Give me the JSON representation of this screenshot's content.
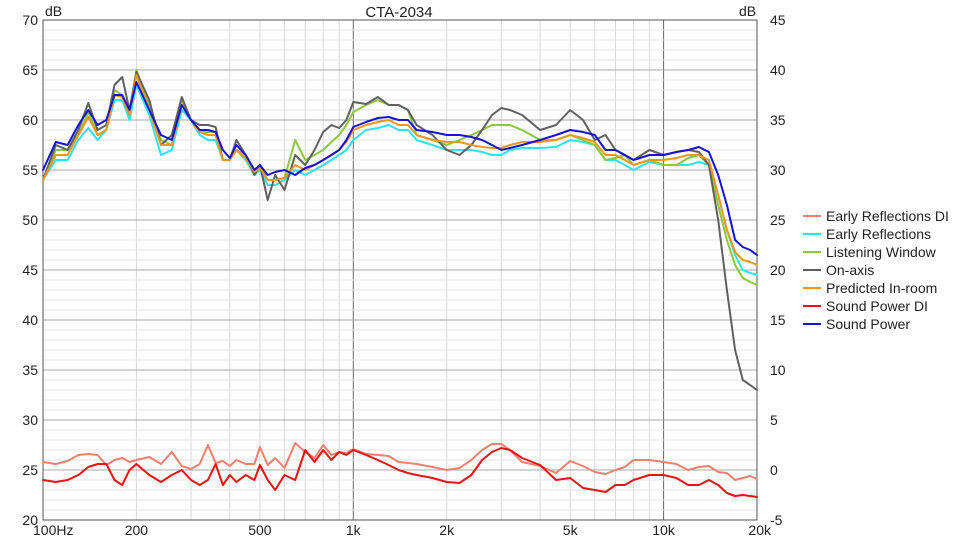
{
  "chart_data": {
    "type": "line",
    "title": "CTA-2034",
    "left_unit": "dB",
    "right_unit": "dB",
    "x_scale": "log",
    "xlim": [
      100,
      20000
    ],
    "ylim_left": [
      20,
      70
    ],
    "ylim_right": [
      -5,
      45
    ],
    "grid": true,
    "legend_position": "right",
    "x_ticks": [
      {
        "value": 100,
        "label": "100Hz"
      },
      {
        "value": 200,
        "label": "200"
      },
      {
        "value": 500,
        "label": "500"
      },
      {
        "value": 1000,
        "label": "1k"
      },
      {
        "value": 2000,
        "label": "2k"
      },
      {
        "value": 5000,
        "label": "5k"
      },
      {
        "value": 10000,
        "label": "10k"
      },
      {
        "value": 20000,
        "label": "20k"
      }
    ],
    "y_ticks_left": [
      {
        "value": 20,
        "label": "20"
      },
      {
        "value": 25,
        "label": "25"
      },
      {
        "value": 30,
        "label": "30"
      },
      {
        "value": 35,
        "label": "35"
      },
      {
        "value": 40,
        "label": "40"
      },
      {
        "value": 45,
        "label": "45"
      },
      {
        "value": 50,
        "label": "50"
      },
      {
        "value": 55,
        "label": "55"
      },
      {
        "value": 60,
        "label": "60"
      },
      {
        "value": 65,
        "label": "65"
      },
      {
        "value": 70,
        "label": "70"
      }
    ],
    "y_ticks_right": [
      {
        "value": -5,
        "label": "-5"
      },
      {
        "value": 0,
        "label": "0"
      },
      {
        "value": 5,
        "label": "5"
      },
      {
        "value": 10,
        "label": "10"
      },
      {
        "value": 15,
        "label": "15"
      },
      {
        "value": 20,
        "label": "20"
      },
      {
        "value": 25,
        "label": "25"
      },
      {
        "value": 30,
        "label": "30"
      },
      {
        "value": 35,
        "label": "35"
      },
      {
        "value": 40,
        "label": "40"
      },
      {
        "value": 45,
        "label": "45"
      }
    ],
    "series": [
      {
        "name": "Early Reflections DI",
        "color": "#f08070",
        "axis": "right",
        "x": [
          100,
          110,
          120,
          130,
          140,
          150,
          160,
          170,
          180,
          190,
          200,
          220,
          240,
          260,
          280,
          300,
          320,
          340,
          360,
          380,
          400,
          420,
          450,
          480,
          500,
          530,
          560,
          600,
          650,
          700,
          750,
          800,
          850,
          900,
          950,
          1000,
          1100,
          1200,
          1300,
          1400,
          1500,
          1600,
          1800,
          2000,
          2200,
          2400,
          2600,
          2800,
          3000,
          3200,
          3500,
          4000,
          4500,
          5000,
          5500,
          6000,
          6500,
          7000,
          7500,
          8000,
          9000,
          10000,
          11000,
          12000,
          13000,
          14000,
          15000,
          16000,
          17000,
          18000,
          19000,
          20000
        ],
        "y": [
          0.8,
          0.6,
          0.9,
          1.5,
          1.6,
          1.5,
          0.5,
          1.0,
          1.2,
          0.8,
          1.0,
          1.3,
          0.6,
          1.8,
          0.4,
          0.1,
          0.6,
          2.5,
          0.7,
          0.9,
          0.4,
          1.0,
          0.6,
          0.6,
          2.3,
          0.5,
          1.2,
          0.2,
          2.7,
          1.8,
          1.2,
          2.5,
          1.5,
          1.8,
          1.7,
          2.1,
          1.6,
          1.5,
          1.4,
          0.8,
          0.7,
          0.6,
          0.3,
          0.0,
          0.2,
          1.0,
          2.0,
          2.6,
          2.6,
          2.0,
          0.8,
          0.4,
          -0.3,
          0.9,
          0.4,
          -0.2,
          -0.4,
          0.0,
          0.3,
          1.0,
          1.0,
          0.8,
          0.6,
          0.0,
          0.3,
          0.4,
          -0.2,
          -0.3,
          -1.0,
          -0.8,
          -0.6,
          -0.9
        ]
      },
      {
        "name": "Early Reflections",
        "color": "#2ce4f0",
        "axis": "left",
        "x": [
          100,
          110,
          120,
          130,
          140,
          150,
          160,
          170,
          180,
          190,
          200,
          220,
          240,
          260,
          280,
          300,
          320,
          340,
          360,
          380,
          400,
          420,
          450,
          480,
          500,
          530,
          560,
          600,
          650,
          700,
          750,
          800,
          850,
          900,
          950,
          1000,
          1100,
          1200,
          1300,
          1400,
          1500,
          1600,
          1800,
          2000,
          2200,
          2400,
          2600,
          2800,
          3000,
          3200,
          3500,
          4000,
          4500,
          5000,
          5500,
          6000,
          6500,
          7000,
          7500,
          8000,
          9000,
          10000,
          11000,
          12000,
          13000,
          14000,
          15000,
          16000,
          17000,
          18000,
          19000,
          20000
        ],
        "y": [
          54.0,
          56.0,
          56.0,
          58.0,
          59.2,
          58.0,
          59.0,
          62.0,
          62.0,
          60.0,
          63.5,
          60.5,
          56.5,
          57.0,
          61.0,
          60.0,
          58.5,
          58.0,
          58.0,
          56.0,
          56.0,
          57.0,
          56.0,
          54.5,
          55.0,
          53.5,
          53.5,
          54.0,
          55.0,
          54.5,
          55.0,
          55.5,
          56.0,
          56.5,
          57.0,
          58.0,
          59.0,
          59.2,
          59.5,
          59.0,
          59.0,
          58.0,
          57.5,
          57.0,
          57.0,
          57.0,
          56.8,
          56.5,
          56.5,
          57.0,
          57.2,
          57.2,
          57.3,
          58.0,
          57.8,
          57.5,
          56.0,
          56.0,
          55.5,
          55.0,
          55.8,
          55.5,
          55.5,
          55.5,
          55.8,
          55.5,
          52.5,
          49.0,
          46.5,
          45.0,
          44.7,
          44.5
        ]
      },
      {
        "name": "Listening Window",
        "color": "#8cc83c",
        "axis": "left",
        "x": [
          100,
          110,
          120,
          130,
          140,
          150,
          160,
          170,
          180,
          190,
          200,
          220,
          240,
          260,
          280,
          300,
          320,
          340,
          360,
          380,
          400,
          420,
          450,
          480,
          500,
          530,
          560,
          600,
          650,
          700,
          750,
          800,
          850,
          900,
          950,
          1000,
          1100,
          1200,
          1300,
          1400,
          1500,
          1600,
          1800,
          2000,
          2200,
          2400,
          2600,
          2800,
          3000,
          3200,
          3500,
          4000,
          4500,
          5000,
          5500,
          6000,
          6500,
          7000,
          7500,
          8000,
          9000,
          10000,
          11000,
          12000,
          13000,
          14000,
          15000,
          16000,
          17000,
          18000,
          19000,
          20000
        ],
        "y": [
          54.0,
          57.0,
          57.0,
          58.5,
          60.8,
          58.5,
          59.0,
          63.0,
          62.5,
          60.5,
          65.0,
          61.5,
          58.0,
          57.5,
          62.0,
          60.0,
          58.8,
          58.8,
          58.8,
          56.0,
          56.0,
          57.0,
          56.5,
          55.0,
          55.5,
          54.0,
          54.0,
          54.2,
          58.0,
          56.0,
          56.5,
          57.0,
          57.8,
          58.5,
          59.5,
          60.8,
          61.5,
          62.0,
          61.5,
          61.5,
          61.0,
          58.5,
          58.0,
          57.5,
          58.0,
          58.5,
          59.0,
          59.5,
          59.5,
          59.5,
          59.0,
          58.0,
          58.0,
          58.5,
          58.0,
          57.5,
          56.0,
          56.2,
          56.5,
          55.5,
          56.0,
          55.5,
          55.5,
          56.2,
          56.5,
          55.5,
          51.5,
          48.0,
          45.5,
          44.2,
          43.8,
          43.5
        ]
      },
      {
        "name": "On-axis",
        "color": "#606060",
        "axis": "left",
        "x": [
          100,
          110,
          120,
          130,
          140,
          150,
          160,
          170,
          180,
          190,
          200,
          220,
          240,
          260,
          280,
          300,
          320,
          340,
          360,
          380,
          400,
          420,
          450,
          480,
          500,
          530,
          560,
          600,
          650,
          700,
          750,
          800,
          850,
          900,
          950,
          1000,
          1100,
          1200,
          1300,
          1400,
          1500,
          1600,
          1800,
          2000,
          2200,
          2400,
          2600,
          2800,
          3000,
          3200,
          3500,
          4000,
          4500,
          5000,
          5500,
          6000,
          6500,
          7000,
          7500,
          8000,
          9000,
          10000,
          11000,
          12000,
          13000,
          14000,
          15000,
          16000,
          17000,
          18000,
          19000,
          20000
        ],
        "y": [
          54.0,
          57.5,
          57.0,
          59.0,
          61.7,
          59.0,
          59.5,
          63.5,
          64.3,
          61.0,
          64.8,
          62.0,
          57.5,
          58.5,
          62.3,
          60.0,
          59.5,
          59.5,
          59.3,
          56.0,
          56.0,
          58.0,
          56.5,
          54.5,
          55.5,
          52.0,
          54.5,
          53.0,
          56.5,
          55.5,
          57.0,
          58.8,
          59.5,
          59.2,
          60.0,
          61.8,
          61.6,
          62.3,
          61.5,
          61.5,
          61.0,
          59.5,
          58.5,
          57.0,
          56.5,
          57.5,
          59.0,
          60.5,
          61.2,
          61.0,
          60.5,
          59.0,
          59.5,
          61.0,
          60.0,
          58.0,
          58.5,
          57.0,
          56.5,
          56.0,
          57.0,
          56.5,
          56.8,
          57.0,
          56.8,
          55.5,
          50.0,
          43.0,
          37.0,
          34.0,
          33.5,
          33.0
        ]
      },
      {
        "name": "Predicted In-room",
        "color": "#f0961e",
        "axis": "left",
        "x": [
          100,
          110,
          120,
          130,
          140,
          150,
          160,
          170,
          180,
          190,
          200,
          220,
          240,
          260,
          280,
          300,
          320,
          340,
          360,
          380,
          400,
          420,
          450,
          480,
          500,
          530,
          560,
          600,
          650,
          700,
          750,
          800,
          850,
          900,
          950,
          1000,
          1100,
          1200,
          1300,
          1400,
          1500,
          1600,
          1800,
          2000,
          2200,
          2400,
          2600,
          2800,
          3000,
          3200,
          3500,
          4000,
          4500,
          5000,
          5500,
          6000,
          6500,
          7000,
          7500,
          8000,
          9000,
          10000,
          11000,
          12000,
          13000,
          14000,
          15000,
          16000,
          17000,
          18000,
          19000,
          20000
        ],
        "y": [
          54.0,
          56.5,
          56.5,
          58.5,
          60.3,
          58.5,
          59.0,
          62.5,
          62.3,
          60.5,
          64.5,
          61.0,
          57.5,
          57.5,
          61.5,
          60.0,
          58.8,
          58.5,
          58.5,
          56.0,
          56.0,
          57.0,
          56.2,
          54.8,
          55.2,
          54.0,
          54.0,
          54.2,
          55.5,
          55.0,
          55.5,
          56.0,
          56.5,
          57.0,
          57.8,
          59.0,
          59.5,
          59.8,
          60.0,
          59.5,
          59.5,
          58.5,
          58.0,
          57.8,
          57.8,
          57.5,
          57.3,
          57.2,
          57.2,
          57.5,
          57.8,
          57.8,
          58.0,
          58.5,
          58.2,
          57.8,
          56.5,
          56.5,
          56.0,
          55.5,
          56.0,
          56.0,
          56.2,
          56.5,
          56.5,
          56.0,
          52.5,
          49.0,
          46.8,
          46.0,
          45.8,
          45.5
        ]
      },
      {
        "name": "Sound Power DI",
        "color": "#e61414",
        "axis": "right",
        "x": [
          100,
          110,
          120,
          130,
          140,
          150,
          160,
          170,
          180,
          190,
          200,
          220,
          240,
          260,
          280,
          300,
          320,
          340,
          360,
          380,
          400,
          420,
          450,
          480,
          500,
          530,
          560,
          600,
          650,
          700,
          750,
          800,
          850,
          900,
          950,
          1000,
          1100,
          1200,
          1300,
          1400,
          1500,
          1600,
          1800,
          2000,
          2200,
          2400,
          2600,
          2800,
          3000,
          3200,
          3500,
          4000,
          4500,
          5000,
          5500,
          6000,
          6500,
          7000,
          7500,
          8000,
          9000,
          10000,
          11000,
          12000,
          13000,
          14000,
          15000,
          16000,
          17000,
          18000,
          19000,
          20000
        ],
        "y": [
          -1.0,
          -1.2,
          -1.0,
          -0.5,
          0.3,
          0.6,
          0.6,
          -1.0,
          -1.5,
          0.0,
          0.6,
          -0.5,
          -1.2,
          -0.5,
          0.0,
          -1.0,
          -1.5,
          -1.0,
          0.6,
          -1.5,
          -0.5,
          -1.2,
          -0.5,
          -1.0,
          0.5,
          -1.0,
          -2.0,
          -0.5,
          -1.0,
          2.0,
          0.8,
          2.0,
          1.0,
          1.8,
          1.5,
          2.0,
          1.5,
          1.0,
          0.5,
          0.0,
          -0.3,
          -0.5,
          -0.8,
          -1.2,
          -1.3,
          -0.5,
          1.0,
          1.8,
          2.2,
          2.0,
          1.2,
          0.5,
          -1.0,
          -0.8,
          -1.8,
          -2.0,
          -2.2,
          -1.5,
          -1.5,
          -1.0,
          -0.5,
          -0.5,
          -0.8,
          -1.5,
          -1.5,
          -1.0,
          -1.5,
          -2.3,
          -2.6,
          -2.5,
          -2.6,
          -2.7
        ]
      },
      {
        "name": "Sound Power",
        "color": "#1414d2",
        "axis": "left",
        "x": [
          100,
          110,
          120,
          130,
          140,
          150,
          160,
          170,
          180,
          190,
          200,
          220,
          240,
          260,
          280,
          300,
          320,
          340,
          360,
          380,
          400,
          420,
          450,
          480,
          500,
          530,
          560,
          600,
          650,
          700,
          750,
          800,
          850,
          900,
          950,
          1000,
          1100,
          1200,
          1300,
          1400,
          1500,
          1600,
          1800,
          2000,
          2200,
          2400,
          2600,
          2800,
          3000,
          3200,
          3500,
          4000,
          4500,
          5000,
          5500,
          6000,
          6500,
          7000,
          7500,
          8000,
          9000,
          10000,
          11000,
          12000,
          13000,
          14000,
          15000,
          16000,
          17000,
          18000,
          19000,
          20000
        ],
        "y": [
          55.0,
          57.8,
          57.5,
          59.5,
          61.0,
          59.5,
          60.0,
          62.5,
          62.5,
          61.0,
          63.8,
          61.0,
          58.5,
          58.0,
          61.5,
          60.0,
          59.0,
          59.0,
          58.8,
          57.0,
          56.2,
          57.5,
          56.5,
          55.0,
          55.5,
          54.5,
          54.8,
          55.0,
          54.5,
          55.2,
          55.5,
          56.0,
          56.5,
          57.0,
          58.0,
          59.3,
          59.8,
          60.2,
          60.3,
          60.0,
          60.0,
          59.0,
          58.8,
          58.5,
          58.5,
          58.3,
          58.0,
          57.5,
          57.0,
          57.2,
          57.5,
          58.0,
          58.5,
          59.0,
          58.8,
          58.5,
          57.0,
          57.0,
          56.5,
          56.0,
          56.5,
          56.5,
          56.8,
          57.0,
          57.3,
          56.8,
          54.5,
          51.5,
          48.0,
          47.3,
          47.0,
          46.5
        ]
      }
    ]
  }
}
